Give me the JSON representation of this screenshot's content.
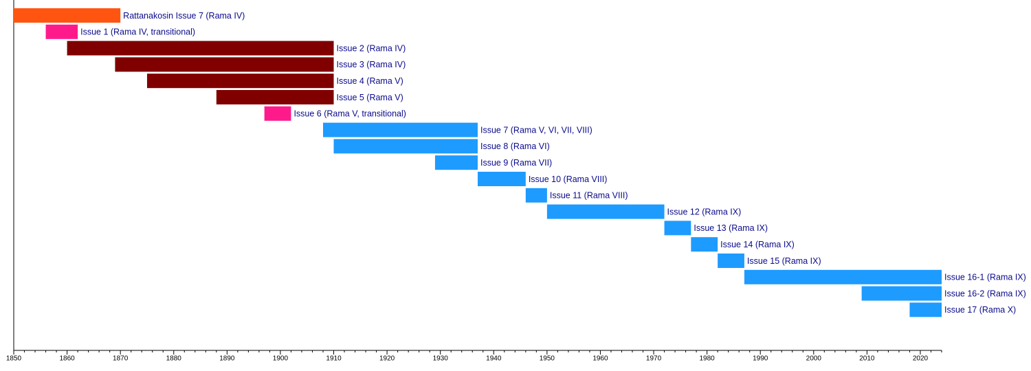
{
  "chart_data": {
    "type": "timeline",
    "xlim": [
      1850,
      2024
    ],
    "xticks": [
      1850,
      1860,
      1870,
      1880,
      1890,
      1900,
      1910,
      1920,
      1930,
      1940,
      1950,
      1960,
      1970,
      1980,
      1990,
      2000,
      2010,
      2020
    ],
    "xminorticks": [
      1852,
      1854,
      1856,
      1858,
      1862,
      1864,
      1866,
      1868,
      1872,
      1874,
      1876,
      1878,
      1882,
      1884,
      1886,
      1888,
      1892,
      1894,
      1896,
      1898,
      1902,
      1904,
      1906,
      1908,
      1912,
      1914,
      1916,
      1918,
      1922,
      1924,
      1926,
      1928,
      1932,
      1934,
      1936,
      1938,
      1942,
      1944,
      1946,
      1948,
      1952,
      1954,
      1956,
      1958,
      1962,
      1964,
      1966,
      1968,
      1972,
      1974,
      1976,
      1978,
      1982,
      1984,
      1986,
      1988,
      1992,
      1994,
      1996,
      1998,
      2002,
      2004,
      2006,
      2008,
      2012,
      2014,
      2016,
      2018,
      2022,
      2024
    ],
    "items": [
      {
        "name": "Rattanakosin Issue 7 (Rama IV)",
        "start": 1850,
        "end": 1870,
        "color": "#ff5511"
      },
      {
        "name": "Issue 1 (Rama IV, transitional)",
        "start": 1856,
        "end": 1862,
        "color": "#ff1a8c"
      },
      {
        "name": "Issue 2 (Rama IV)",
        "start": 1860,
        "end": 1910,
        "color": "#800000"
      },
      {
        "name": "Issue 3 (Rama IV)",
        "start": 1869,
        "end": 1910,
        "color": "#800000"
      },
      {
        "name": "Issue 4 (Rama V)",
        "start": 1875,
        "end": 1910,
        "color": "#800000"
      },
      {
        "name": "Issue 5 (Rama V)",
        "start": 1888,
        "end": 1910,
        "color": "#800000"
      },
      {
        "name": "Issue 6 (Rama V, transitional)",
        "start": 1897,
        "end": 1902,
        "color": "#ff1a8c"
      },
      {
        "name": "Issue 7 (Rama V, VI, VII, VIII)",
        "start": 1908,
        "end": 1937,
        "color": "#1e9bff"
      },
      {
        "name": "Issue 8 (Rama VI)",
        "start": 1910,
        "end": 1937,
        "color": "#1e9bff"
      },
      {
        "name": "Issue 9 (Rama VII)",
        "start": 1929,
        "end": 1937,
        "color": "#1e9bff"
      },
      {
        "name": "Issue 10 (Rama VIII)",
        "start": 1937,
        "end": 1946,
        "color": "#1e9bff"
      },
      {
        "name": "Issue 11 (Rama VIII)",
        "start": 1946,
        "end": 1950,
        "color": "#1e9bff"
      },
      {
        "name": "Issue 12 (Rama IX)",
        "start": 1950,
        "end": 1972,
        "color": "#1e9bff"
      },
      {
        "name": "Issue 13 (Rama IX)",
        "start": 1972,
        "end": 1977,
        "color": "#1e9bff"
      },
      {
        "name": "Issue 14 (Rama IX)",
        "start": 1977,
        "end": 1982,
        "color": "#1e9bff"
      },
      {
        "name": "Issue 15 (Rama IX)",
        "start": 1982,
        "end": 1987,
        "color": "#1e9bff"
      },
      {
        "name": "Issue 16-1 (Rama IX)",
        "start": 1987,
        "end": 2024,
        "color": "#1e9bff"
      },
      {
        "name": "Issue 16-2 (Rama IX)",
        "start": 2009,
        "end": 2024,
        "color": "#1e9bff"
      },
      {
        "name": "Issue 17 (Rama X)",
        "start": 2018,
        "end": 2024,
        "color": "#1e9bff"
      }
    ]
  }
}
